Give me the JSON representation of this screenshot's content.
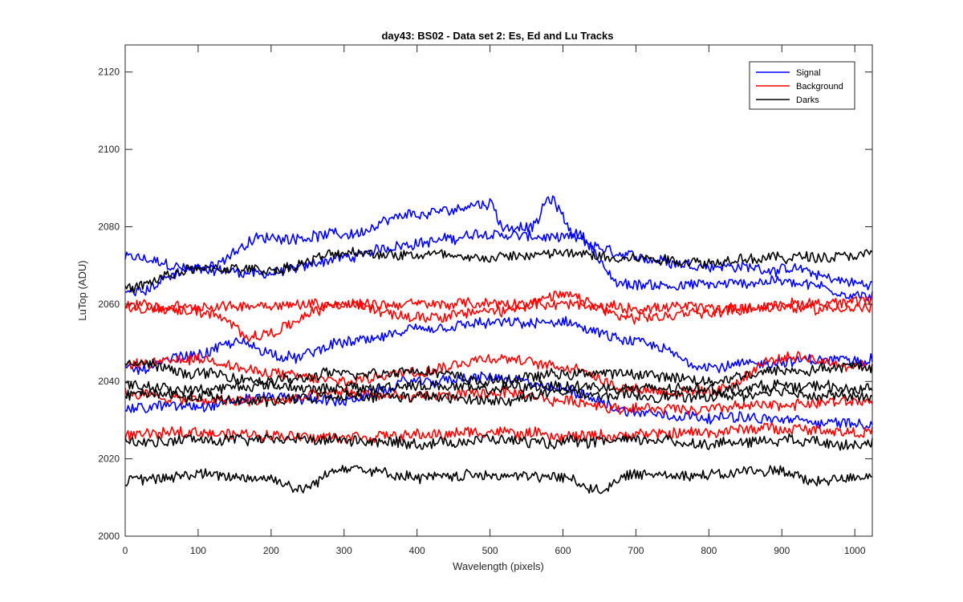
{
  "chart_data": {
    "type": "line",
    "title": "day43: BS02 - Data set 2: Es, Ed and Lu Tracks",
    "xlabel": "Wavelength (pixels)",
    "ylabel": "LuTop (ADU)",
    "xlim": [
      0,
      1024
    ],
    "ylim": [
      2000,
      2127
    ],
    "xticks": [
      0,
      100,
      200,
      300,
      400,
      500,
      600,
      700,
      800,
      900,
      1000
    ],
    "yticks": [
      2000,
      2020,
      2040,
      2060,
      2080,
      2100,
      2120
    ],
    "grid": false,
    "legend": {
      "placement": "top-right",
      "entries": [
        {
          "label": "Signal",
          "color": "#0000ff"
        },
        {
          "label": "Background",
          "color": "#ff0000"
        },
        {
          "label": "Darks",
          "color": "#000000"
        }
      ]
    },
    "noise_amplitude": 1.3,
    "series": [
      {
        "group": "Signal",
        "color": "#0000ff",
        "knots_x": [
          0,
          100,
          200,
          300,
          400,
          500,
          600,
          700,
          800,
          900,
          1024
        ],
        "knots_y": [
          2072,
          2069,
          2068,
          2072,
          2076,
          2078,
          2077,
          2072,
          2070,
          2069,
          2065
        ]
      },
      {
        "group": "Signal",
        "color": "#0000ff",
        "knots_x": [
          0,
          100,
          190,
          300,
          400,
          500,
          520,
          560,
          580,
          620,
          680,
          800,
          900,
          1024
        ],
        "knots_y": [
          2063,
          2069,
          2077,
          2078,
          2083,
          2086,
          2080,
          2080,
          2087,
          2078,
          2065,
          2065,
          2066,
          2062
        ]
      },
      {
        "group": "Signal",
        "color": "#0000ff",
        "knots_x": [
          0,
          100,
          150,
          230,
          300,
          400,
          500,
          600,
          700,
          800,
          900,
          1024
        ],
        "knots_y": [
          2043,
          2047,
          2050,
          2046,
          2050,
          2053,
          2055,
          2055,
          2050,
          2044,
          2045,
          2046
        ]
      },
      {
        "group": "Signal",
        "color": "#0000ff",
        "knots_x": [
          0,
          100,
          200,
          300,
          400,
          500,
          600,
          700,
          800,
          900,
          1024
        ],
        "knots_y": [
          2033,
          2034,
          2036,
          2035,
          2040,
          2041,
          2038,
          2032,
          2031,
          2030,
          2029
        ]
      },
      {
        "group": "Background",
        "color": "#ff0000",
        "knots_x": [
          0,
          100,
          200,
          300,
          400,
          500,
          600,
          700,
          800,
          900,
          1024
        ],
        "knots_y": [
          2059,
          2059,
          2060,
          2060,
          2060,
          2060,
          2060,
          2059,
          2059,
          2059,
          2059
        ]
      },
      {
        "group": "Background",
        "color": "#ff0000",
        "knots_x": [
          0,
          100,
          180,
          300,
          400,
          500,
          600,
          700,
          800,
          900,
          1024
        ],
        "knots_y": [
          2060,
          2058,
          2052,
          2060,
          2057,
          2058,
          2062,
          2056,
          2058,
          2060,
          2061
        ]
      },
      {
        "group": "Background",
        "color": "#ff0000",
        "knots_x": [
          0,
          100,
          200,
          300,
          400,
          500,
          600,
          700,
          800,
          900,
          1024
        ],
        "knots_y": [
          2044,
          2046,
          2042,
          2040,
          2043,
          2046,
          2044,
          2038,
          2037,
          2046,
          2044
        ]
      },
      {
        "group": "Background",
        "color": "#ff0000",
        "knots_x": [
          0,
          100,
          200,
          300,
          400,
          500,
          600,
          700,
          800,
          900,
          1024
        ],
        "knots_y": [
          2037,
          2035,
          2035,
          2037,
          2036,
          2037,
          2035,
          2033,
          2033,
          2034,
          2035
        ]
      },
      {
        "group": "Background",
        "color": "#ff0000",
        "knots_x": [
          0,
          100,
          200,
          300,
          400,
          500,
          600,
          700,
          800,
          900,
          1024
        ],
        "knots_y": [
          2026,
          2027,
          2026,
          2026,
          2026,
          2027,
          2026,
          2026,
          2027,
          2028,
          2027
        ]
      },
      {
        "group": "Darks",
        "color": "#000000",
        "knots_x": [
          0,
          100,
          200,
          300,
          400,
          500,
          600,
          700,
          800,
          900,
          1024
        ],
        "knots_y": [
          2064,
          2069,
          2069,
          2073,
          2073,
          2072,
          2073,
          2072,
          2071,
          2072,
          2073
        ]
      },
      {
        "group": "Darks",
        "color": "#000000",
        "knots_x": [
          0,
          100,
          200,
          300,
          400,
          500,
          600,
          700,
          800,
          900,
          1024
        ],
        "knots_y": [
          2045,
          2042,
          2040,
          2042,
          2043,
          2040,
          2042,
          2042,
          2040,
          2043,
          2044
        ]
      },
      {
        "group": "Darks",
        "color": "#000000",
        "knots_x": [
          0,
          100,
          200,
          300,
          400,
          500,
          600,
          700,
          800,
          900,
          1024
        ],
        "knots_y": [
          2039,
          2038,
          2039,
          2038,
          2039,
          2038,
          2039,
          2038,
          2038,
          2039,
          2038
        ]
      },
      {
        "group": "Darks",
        "color": "#000000",
        "knots_x": [
          0,
          100,
          200,
          300,
          400,
          500,
          600,
          700,
          800,
          900,
          1024
        ],
        "knots_y": [
          2037,
          2036,
          2035,
          2036,
          2036,
          2035,
          2037,
          2036,
          2036,
          2037,
          2036
        ]
      },
      {
        "group": "Darks",
        "color": "#000000",
        "knots_x": [
          0,
          100,
          200,
          300,
          400,
          500,
          600,
          700,
          800,
          900,
          1024
        ],
        "knots_y": [
          2024,
          2025,
          2025,
          2025,
          2024,
          2025,
          2024,
          2025,
          2024,
          2025,
          2024
        ]
      },
      {
        "group": "Darks",
        "color": "#000000",
        "knots_x": [
          0,
          100,
          200,
          240,
          300,
          400,
          500,
          600,
          650,
          700,
          800,
          900,
          940,
          1024
        ],
        "knots_y": [
          2014,
          2016,
          2015,
          2012,
          2018,
          2015,
          2016,
          2015,
          2012,
          2016,
          2016,
          2017,
          2014,
          2016
        ]
      }
    ]
  }
}
